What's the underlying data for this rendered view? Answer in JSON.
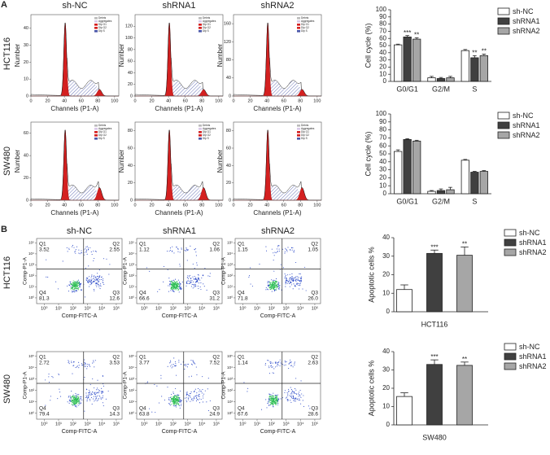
{
  "panel_a": {
    "label": "A",
    "column_titles": [
      "sh-NC",
      "shRNA1",
      "shRNA2"
    ],
    "row_labels": [
      "HCT116",
      "SW480"
    ],
    "xlabel": "Channels (P1-A)",
    "ylabel": "Number",
    "xlim": [
      0,
      105
    ],
    "xticks": [
      0,
      20,
      40,
      60,
      80,
      100
    ],
    "legend": [
      "Debris",
      "Aggregates",
      "Dip G1",
      "Dip G2",
      "Dip S"
    ],
    "histograms": [
      {
        "ylim": [
          0,
          48
        ],
        "yticks": [
          0,
          10,
          20,
          30,
          40
        ]
      },
      {
        "ylim": [
          0,
          140
        ],
        "yticks": [
          0,
          20,
          40,
          60,
          80,
          100,
          120
        ]
      },
      {
        "ylim": [
          0,
          180
        ],
        "yticks": [
          0,
          40,
          80,
          120,
          160
        ]
      },
      {
        "ylim": [
          0,
          70
        ],
        "yticks": [
          0,
          20,
          40,
          60
        ]
      },
      {
        "ylim": [
          0,
          90
        ],
        "yticks": [
          0,
          20,
          40,
          60,
          80
        ]
      },
      {
        "ylim": [
          0,
          90
        ],
        "yticks": [
          0,
          20,
          40,
          60,
          80
        ]
      }
    ]
  },
  "panel_b": {
    "label": "B",
    "column_titles": [
      "sh-NC",
      "shRNA1",
      "shRNA2"
    ],
    "row_labels": [
      "HCT116",
      "SW480"
    ],
    "xlabel": "Comp-FITC-A",
    "ylabel": "Comp-P1-A",
    "xlim": [
      0.3,
      250000
    ],
    "ylim": [
      0.3,
      250000
    ],
    "xticks": [
      {
        "value": 1,
        "label": "10⁰"
      },
      {
        "value": 10,
        "label": "10¹"
      },
      {
        "value": 100,
        "label": "10²"
      },
      {
        "value": 1000,
        "label": "10³"
      },
      {
        "value": 10000,
        "label": "10⁴"
      },
      {
        "value": 100000,
        "label": "10⁵"
      }
    ],
    "yticks": [
      {
        "value": 1,
        "label": "10⁰"
      },
      {
        "value": 10,
        "label": "10¹"
      },
      {
        "value": 100,
        "label": "10²"
      },
      {
        "value": 1000,
        "label": "10³"
      },
      {
        "value": 10000,
        "label": "10⁴"
      },
      {
        "value": 100000,
        "label": "10⁵"
      }
    ],
    "plots": [
      {
        "quadrants": [
          {
            "name": "Q1",
            "value": "3.52"
          },
          {
            "name": "Q2",
            "value": "2.55"
          },
          {
            "name": "Q3",
            "value": "12.6"
          },
          {
            "name": "Q4",
            "value": "81.3"
          }
        ]
      },
      {
        "quadrants": [
          {
            "name": "Q1",
            "value": "1.12"
          },
          {
            "name": "Q2",
            "value": "1.06"
          },
          {
            "name": "Q3",
            "value": "31.2"
          },
          {
            "name": "Q4",
            "value": "66.6"
          }
        ]
      },
      {
        "quadrants": [
          {
            "name": "Q1",
            "value": "1.15"
          },
          {
            "name": "Q2",
            "value": "1.05"
          },
          {
            "name": "Q3",
            "value": "26.0"
          },
          {
            "name": "Q4",
            "value": "71.8"
          }
        ]
      },
      {
        "quadrants": [
          {
            "name": "Q1",
            "value": "2.72"
          },
          {
            "name": "Q2",
            "value": "3.53"
          },
          {
            "name": "Q3",
            "value": "14.3"
          },
          {
            "name": "Q4",
            "value": "79.4"
          }
        ]
      },
      {
        "quadrants": [
          {
            "name": "Q1",
            "value": "3.77"
          },
          {
            "name": "Q2",
            "value": "7.52"
          },
          {
            "name": "Q3",
            "value": "24.9"
          },
          {
            "name": "Q4",
            "value": "63.8"
          }
        ]
      },
      {
        "quadrants": [
          {
            "name": "Q1",
            "value": "1.14"
          },
          {
            "name": "Q2",
            "value": "2.63"
          },
          {
            "name": "Q3",
            "value": "28.6"
          },
          {
            "name": "Q4",
            "value": "67.6"
          }
        ]
      }
    ]
  },
  "chart_data": [
    {
      "type": "bar",
      "ylabel": "Cell cycle (%)",
      "categories": [
        "G0/G1",
        "G2/M",
        "S"
      ],
      "ylim": [
        0,
        100
      ],
      "yticks": [
        0,
        10,
        20,
        30,
        40,
        50,
        60,
        70,
        80,
        90,
        100
      ],
      "legend": "right",
      "series": [
        {
          "name": "sh-NC",
          "color": "#ffffff",
          "values": [
            51,
            5,
            43
          ],
          "errors": [
            1,
            2,
            1.5
          ]
        },
        {
          "name": "shRNA1",
          "color": "#404040",
          "values": [
            62,
            4,
            33
          ],
          "errors": [
            2,
            1.5,
            3
          ],
          "significance": [
            "***",
            null,
            "**"
          ]
        },
        {
          "name": "shRNA2",
          "color": "#a6a6a6",
          "values": [
            59,
            5,
            36
          ],
          "errors": [
            2,
            2,
            2
          ],
          "significance": [
            "**",
            null,
            "**"
          ]
        }
      ]
    },
    {
      "type": "bar",
      "ylabel": "Cell cycle (%)",
      "categories": [
        "G0/G1",
        "G2/M",
        "S"
      ],
      "ylim": [
        0,
        100
      ],
      "yticks": [
        0,
        10,
        20,
        30,
        40,
        50,
        60,
        70,
        80,
        90,
        100
      ],
      "legend": "right",
      "series": [
        {
          "name": "sh-NC",
          "color": "#ffffff",
          "values": [
            53,
            3,
            42
          ],
          "errors": [
            2,
            1,
            1
          ]
        },
        {
          "name": "shRNA1",
          "color": "#404040",
          "values": [
            68,
            4,
            27
          ],
          "errors": [
            1,
            2,
            1
          ]
        },
        {
          "name": "shRNA2",
          "color": "#a6a6a6",
          "values": [
            66,
            5,
            28
          ],
          "errors": [
            1,
            3,
            1
          ]
        }
      ]
    },
    {
      "type": "bar",
      "ylabel": "Apoptotic cells %",
      "xlabel": "HCT116",
      "ylim": [
        0,
        40
      ],
      "yticks": [
        0,
        10,
        20,
        30,
        40
      ],
      "legend": "right",
      "series": [
        {
          "name": "sh-NC",
          "color": "#ffffff",
          "values": [
            12
          ],
          "errors": [
            2.5
          ]
        },
        {
          "name": "shRNA1",
          "color": "#404040",
          "values": [
            31.5
          ],
          "errors": [
            1.8
          ],
          "significance": [
            "***"
          ]
        },
        {
          "name": "shRNA2",
          "color": "#a6a6a6",
          "values": [
            30.5
          ],
          "errors": [
            4.5
          ],
          "significance": [
            "**"
          ]
        }
      ]
    },
    {
      "type": "bar",
      "ylabel": "Apoptotic cells %",
      "xlabel": "SW480",
      "ylim": [
        0,
        40
      ],
      "yticks": [
        0,
        10,
        20,
        30,
        40
      ],
      "legend": "right",
      "series": [
        {
          "name": "sh-NC",
          "color": "#ffffff",
          "values": [
            15.5
          ],
          "errors": [
            2
          ]
        },
        {
          "name": "shRNA1",
          "color": "#404040",
          "values": [
            33
          ],
          "errors": [
            2.5
          ],
          "significance": [
            "***"
          ]
        },
        {
          "name": "shRNA2",
          "color": "#a6a6a6",
          "values": [
            32.5
          ],
          "errors": [
            1.8
          ],
          "significance": [
            "**"
          ]
        }
      ]
    }
  ]
}
